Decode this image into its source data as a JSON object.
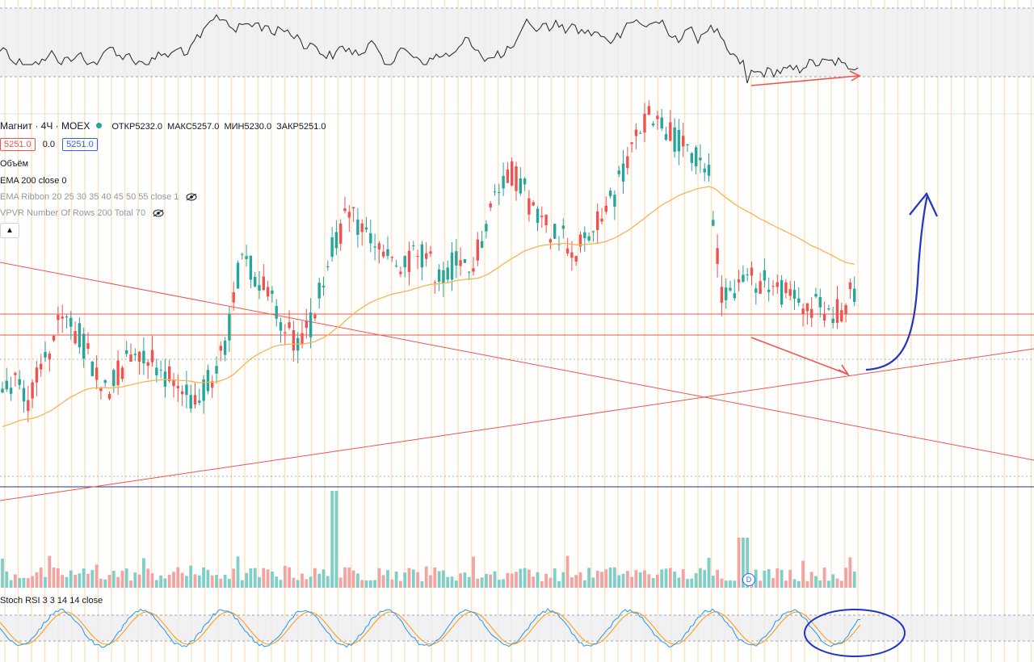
{
  "header": {
    "symbol": "Магнит · 4Ч · MOEX",
    "open_label": "ОТКР",
    "open": "5232.0",
    "high_label": "МАКС",
    "high": "5257.0",
    "low_label": "МИН",
    "low": "5230.0",
    "close_label": "ЗАКР",
    "close": "5251.0",
    "bid": "5251.0",
    "spread": "0.0",
    "ask": "5251.0"
  },
  "indicators": {
    "volume": "Объём",
    "ema": "EMA 200 close 0",
    "ribbon": "EMA Ribbon 20 25 30 35 40 45 50 55 close 1",
    "vpvr": "VPVR Number Of Rows 200 Total 70",
    "stoch": "Stoch RSI 3 3 14 14 close"
  },
  "collapse_icon": "chevron-up-icon",
  "dividend_marker": "D",
  "colors": {
    "up": "#26a69a",
    "down": "#ef5350",
    "ema": "#f5b552",
    "trendline": "#ef5350",
    "annotation": "#1f35c7",
    "stoch_k": "#2196f3",
    "stoch_d": "#ff9800",
    "vertical_grid": "#fbe3c2"
  },
  "chart_data": [
    {
      "type": "candlestick",
      "title": "Магнит · 4Ч · MOEX",
      "y_description": "price, approx. 4940–5560",
      "candles": [],
      "seed": [
        5080,
        5100,
        5060,
        5120,
        5180,
        5200,
        5160,
        5100,
        5080,
        5120,
        5150,
        5140,
        5110,
        5090,
        5060,
        5080,
        5100,
        5180,
        5320,
        5280,
        5240,
        5200,
        5160,
        5180,
        5260,
        5340,
        5380,
        5360,
        5330,
        5300,
        5280,
        5320,
        5300,
        5270,
        5300,
        5280,
        5340,
        5420,
        5460,
        5440,
        5380,
        5360,
        5350,
        5320,
        5340,
        5380,
        5420,
        5480,
        5540,
        5560,
        5530,
        5500,
        5480,
        5460,
        5250,
        5260,
        5270,
        5268,
        5255,
        5240,
        5230,
        5225,
        5210,
        5220,
        5251
      ],
      "horizontal_levels": [
        "red",
        "red",
        "blue"
      ]
    },
    {
      "type": "bar",
      "name": "Объём",
      "description": "volume histogram, spike near the middle and near the end"
    },
    {
      "type": "line",
      "name": "Stoch RSI 3 3 14 14 close",
      "ylim": [
        0,
        100
      ],
      "bands": [
        20,
        80
      ]
    }
  ]
}
